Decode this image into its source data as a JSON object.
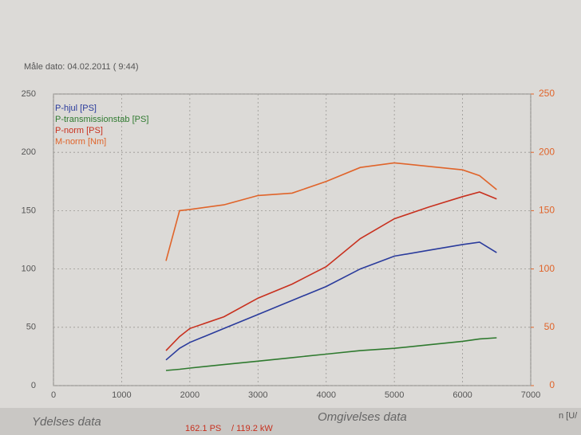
{
  "header": "Måle dato: 04.02.2011 ( 9:44)",
  "chart_data": {
    "type": "line",
    "x_label": "n [U/",
    "x": [
      1650,
      1850,
      2000,
      2500,
      3000,
      3500,
      4000,
      4500,
      5000,
      5500,
      6000,
      6250,
      6500
    ],
    "xlim": [
      0,
      7000
    ],
    "xticks": [
      0,
      1000,
      2000,
      3000,
      4000,
      5000,
      6000,
      7000
    ],
    "ylim": [
      0,
      250
    ],
    "yticks": [
      0,
      50,
      100,
      150,
      200,
      250
    ],
    "y2lim": [
      0,
      250
    ],
    "y2ticks": [
      0,
      50,
      100,
      150,
      200,
      250
    ],
    "grid": true,
    "legend": "upper left",
    "series": [
      {
        "name": "P-hjul [PS]",
        "color": "#2a3b9c",
        "values": [
          22,
          32,
          37,
          49,
          61,
          73,
          85,
          100,
          111,
          116,
          121,
          123,
          114
        ]
      },
      {
        "name": "P-transmissionstab [PS]",
        "color": "#2f7a2f",
        "values": [
          13,
          14,
          15,
          18,
          21,
          24,
          27,
          30,
          32,
          35,
          38,
          40,
          41
        ]
      },
      {
        "name": "P-norm [PS]",
        "color": "#c8301e",
        "values": [
          30,
          42,
          49,
          59,
          75,
          87,
          102,
          126,
          143,
          153,
          162,
          166,
          160
        ]
      },
      {
        "name": "M-norm [Nm]",
        "color": "#e0642a",
        "axis": "y2",
        "values": [
          107,
          150,
          151,
          155,
          163,
          165,
          175,
          187,
          191,
          188,
          185,
          180,
          168
        ]
      }
    ]
  },
  "footer": {
    "left_title": "Ydelses data",
    "power_ps": "162.1 PS",
    "power_kw": "/ 119.2 kW",
    "right_title": "Omgivelses data"
  }
}
